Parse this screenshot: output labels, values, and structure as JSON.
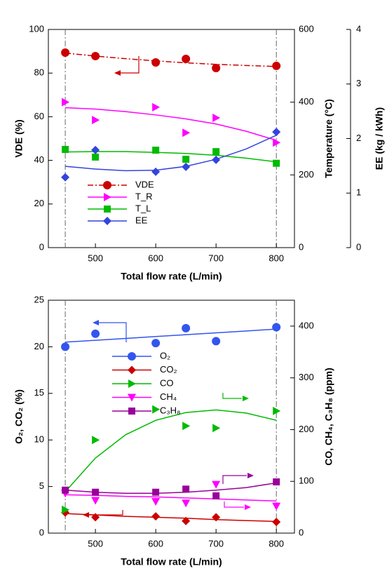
{
  "chart_data": [
    {
      "type": "line",
      "x_label": "Total flow rate (L/min)",
      "y_label": "VDE (%)",
      "y2_label": "Temperature (°C)",
      "y3_label": "EE (kg / kWh)",
      "xlim": [
        422,
        830
      ],
      "xticks": [
        500,
        600,
        700,
        800
      ],
      "ylim": [
        0,
        100
      ],
      "yticks": [
        0,
        20,
        40,
        60,
        80,
        100
      ],
      "y2lim": [
        0,
        600
      ],
      "y2ticks": [
        0,
        200,
        400,
        600
      ],
      "y3lim": [
        0,
        4
      ],
      "y3ticks": [
        0,
        1,
        2,
        3,
        4
      ],
      "reference_lines": [
        450,
        800
      ],
      "x": [
        450,
        500,
        600,
        650,
        700,
        800
      ],
      "fit_x": [
        450,
        500,
        550,
        600,
        650,
        700,
        750,
        800
      ],
      "series": [
        {
          "name": "VDE",
          "color": "#cc0000",
          "marker": "circle",
          "dash": true,
          "axis": "y",
          "values": [
            89.4,
            87.8,
            84.9,
            86.5,
            82.3,
            83.3
          ],
          "fit": [
            89.2,
            87.8,
            86.6,
            85.6,
            84.7,
            84.0,
            83.5,
            83.0
          ]
        },
        {
          "name": "T_R",
          "color": "#ff00ff",
          "marker": "triangle-right",
          "axis": "y2",
          "values": [
            400,
            351,
            386,
            316,
            357,
            289
          ],
          "fit": [
            385,
            381,
            374,
            365,
            354,
            340,
            320,
            295
          ]
        },
        {
          "name": "T_L",
          "color": "#00bb00",
          "marker": "square",
          "axis": "y2",
          "values": [
            270,
            249,
            268,
            243,
            264,
            232
          ],
          "fit": [
            263,
            264,
            264,
            262,
            259,
            254,
            246,
            236
          ]
        },
        {
          "name": "EE",
          "color": "#3344dd",
          "marker": "diamond",
          "axis": "y3",
          "values": [
            1.29,
            1.79,
            1.39,
            1.48,
            1.61,
            2.12
          ],
          "fit": [
            1.49,
            1.44,
            1.41,
            1.42,
            1.49,
            1.62,
            1.81,
            2.06
          ]
        }
      ]
    },
    {
      "type": "line",
      "x_label": "Total flow rate (L/min)",
      "y_label": "O₂, CO₂ (%)",
      "y2_label": "CO, CH₄, C₃H₈ (ppm)",
      "xlim": [
        422,
        830
      ],
      "xticks": [
        500,
        600,
        700,
        800
      ],
      "ylim": [
        0,
        25
      ],
      "yticks": [
        0,
        5,
        10,
        15,
        20,
        25
      ],
      "y2lim": [
        0,
        450
      ],
      "y2ticks": [
        0,
        100,
        200,
        300,
        400
      ],
      "reference_lines": [
        450,
        800
      ],
      "x": [
        450,
        500,
        600,
        650,
        700,
        800
      ],
      "fit_x": [
        450,
        500,
        550,
        600,
        650,
        700,
        750,
        800
      ],
      "series": [
        {
          "name": "O₂",
          "color": "#3355ee",
          "marker": "circle",
          "axis": "y",
          "values": [
            20.0,
            21.4,
            20.4,
            22.0,
            20.6,
            22.1
          ],
          "fit": [
            20.5,
            20.7,
            20.9,
            21.1,
            21.3,
            21.5,
            21.7,
            21.9
          ]
        },
        {
          "name": "CO₂",
          "color": "#cc0000",
          "marker": "diamond",
          "axis": "y",
          "values": [
            2.2,
            1.7,
            1.8,
            1.3,
            1.7,
            1.2
          ],
          "fit": [
            2.1,
            1.95,
            1.8,
            1.7,
            1.6,
            1.45,
            1.35,
            1.25
          ]
        },
        {
          "name": "CO",
          "color": "#00bb00",
          "marker": "triangle-right",
          "axis": "y2",
          "values": [
            45,
            180,
            239,
            207,
            203,
            236
          ],
          "fit": [
            80,
            145,
            190,
            218,
            233,
            238,
            232,
            218
          ]
        },
        {
          "name": "CH₄",
          "color": "#ff00ff",
          "marker": "triangle-down",
          "axis": "y2",
          "values": [
            77,
            63,
            61,
            58,
            94,
            52
          ],
          "fit": [
            74,
            73,
            71,
            70,
            68,
            66,
            64,
            62
          ]
        },
        {
          "name": "C₃H₈",
          "color": "#990099",
          "marker": "square",
          "axis": "y2",
          "values": [
            83,
            79,
            79,
            85,
            72,
            99
          ],
          "fit": [
            83,
            79,
            77,
            77,
            79,
            83,
            88,
            97
          ]
        }
      ]
    }
  ]
}
